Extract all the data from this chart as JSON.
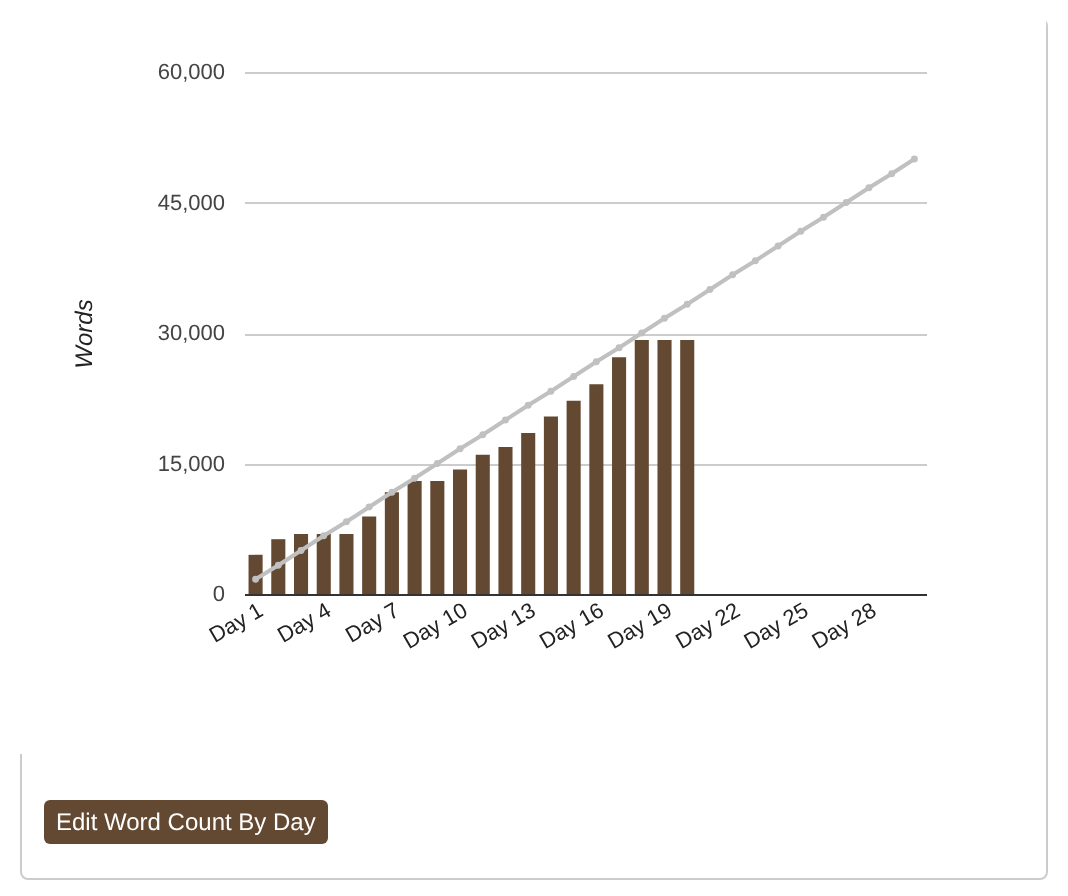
{
  "chart_data": {
    "type": "bar",
    "ylabel": "Words",
    "categories": [
      "Day 1",
      null,
      null,
      "Day 4",
      null,
      null,
      "Day 7",
      null,
      null,
      "Day 10",
      null,
      null,
      "Day 13",
      null,
      null,
      "Day 16",
      null,
      null,
      "Day 19",
      null,
      null,
      "Day 22",
      null,
      null,
      "Day 25",
      null,
      null,
      "Day 28",
      null,
      null
    ],
    "series": [
      {
        "color": "#634832",
        "values": [
          4500,
          6300,
          6900,
          6900,
          6900,
          8900,
          11700,
          13000,
          13000,
          14300,
          16000,
          16900,
          18500,
          20400,
          22200,
          24100,
          27200,
          29200,
          29200,
          29200,
          null,
          null,
          null,
          null,
          null,
          null,
          null,
          null,
          null,
          null
        ]
      },
      {
        "type": "line",
        "color": "#c0c0c0",
        "values": [
          1700,
          3300,
          5000,
          6700,
          8300,
          10000,
          11700,
          13300,
          15000,
          16700,
          18300,
          20000,
          21700,
          23300,
          25000,
          26700,
          28300,
          30000,
          31700,
          33300,
          35000,
          36700,
          38300,
          40000,
          41700,
          43300,
          45000,
          46700,
          48300,
          50000
        ]
      }
    ],
    "ylim": [
      0,
      60000
    ],
    "yticks": [
      0,
      {
        "value": 15000,
        "label": "15,000"
      },
      {
        "value": 30000,
        "label": "30,000"
      },
      {
        "value": 45000,
        "label": "45,000"
      },
      {
        "value": 60000,
        "label": "60,000"
      }
    ],
    "grid": "y",
    "marker": "circle",
    "annotations": [
      "Edit Word Count By Day"
    ]
  }
}
